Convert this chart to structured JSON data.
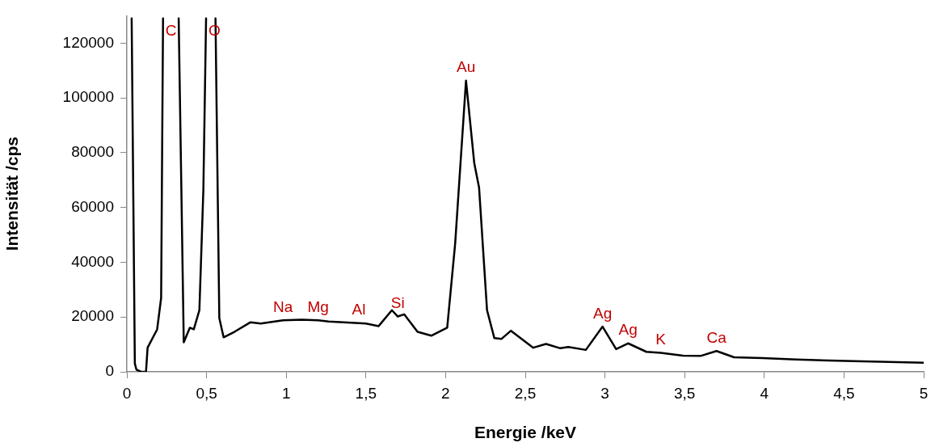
{
  "chart_data": {
    "type": "line",
    "xlabel": "Energie /keV",
    "ylabel": "Intensität /cps",
    "series": [
      {
        "color": "#000000",
        "x": [
          0.03,
          0.05,
          0.06,
          0.09,
          0.12,
          0.13,
          0.19,
          0.215,
          0.227,
          0.26,
          0.325,
          0.357,
          0.395,
          0.42,
          0.455,
          0.48,
          0.497,
          0.52,
          0.556,
          0.58,
          0.607,
          0.675,
          0.776,
          0.84,
          0.98,
          1.097,
          1.2,
          1.266,
          1.455,
          1.5,
          1.58,
          1.663,
          1.7,
          1.74,
          1.824,
          1.91,
          2.01,
          2.06,
          2.128,
          2.18,
          2.21,
          2.26,
          2.306,
          2.35,
          2.41,
          2.55,
          2.63,
          2.72,
          2.77,
          2.88,
          2.985,
          3.07,
          3.145,
          3.26,
          3.35,
          3.37,
          3.49,
          3.6,
          3.7,
          3.81,
          3.99,
          4.2,
          4.56,
          5.0
        ],
        "values": [
          129000,
          3000,
          800,
          0,
          0,
          8800,
          15500,
          27000,
          129000,
          null,
          129000,
          10800,
          16100,
          15500,
          22500,
          66400,
          129000,
          null,
          129000,
          19600,
          12600,
          14600,
          18100,
          17600,
          18800,
          19000,
          18800,
          18400,
          17800,
          17600,
          16700,
          22500,
          20200,
          21000,
          14600,
          13200,
          16100,
          46800,
          106300,
          76100,
          67300,
          22500,
          12300,
          12000,
          15000,
          8800,
          10200,
          8600,
          9100,
          8000,
          16500,
          8300,
          10400,
          7300,
          6900,
          6800,
          5900,
          5800,
          7600,
          5300,
          5000,
          4500,
          3900,
          3300
        ]
      }
    ],
    "xlim": [
      0,
      5
    ],
    "ylim": [
      0,
      130000
    ],
    "xticks": [
      0,
      {
        "value": 0.5,
        "label": "0,5"
      },
      1,
      {
        "value": 1.5,
        "label": "1,5"
      },
      2,
      {
        "value": 2.5,
        "label": "2,5"
      },
      3,
      {
        "value": 3.5,
        "label": "3,5"
      },
      4,
      {
        "value": 4.5,
        "label": "4,5"
      },
      5
    ],
    "yticks": [
      0,
      20000,
      40000,
      60000,
      80000,
      100000,
      120000
    ],
    "grid": false,
    "legend": false,
    "marker": "none",
    "line_style": "solid",
    "annotations": [
      {
        "text": "C",
        "x": 0.227,
        "y": 129000
      },
      {
        "text": "O",
        "x": 0.497,
        "y": 129000
      },
      {
        "text": "Na",
        "x": 0.98,
        "y": 18800
      },
      {
        "text": "Mg",
        "x": 1.2,
        "y": 18800
      },
      {
        "text": "Al",
        "x": 1.455,
        "y": 17800
      },
      {
        "text": "Si",
        "x": 1.7,
        "y": 20200
      },
      {
        "text": "Au",
        "x": 2.128,
        "y": 106300
      },
      {
        "text": "Ag",
        "x": 2.985,
        "y": 16500
      },
      {
        "text": "Ag",
        "x": 3.145,
        "y": 10400
      },
      {
        "text": "K",
        "x": 3.35,
        "y": 6900
      },
      {
        "text": "Ca",
        "x": 3.7,
        "y": 7600
      }
    ]
  }
}
